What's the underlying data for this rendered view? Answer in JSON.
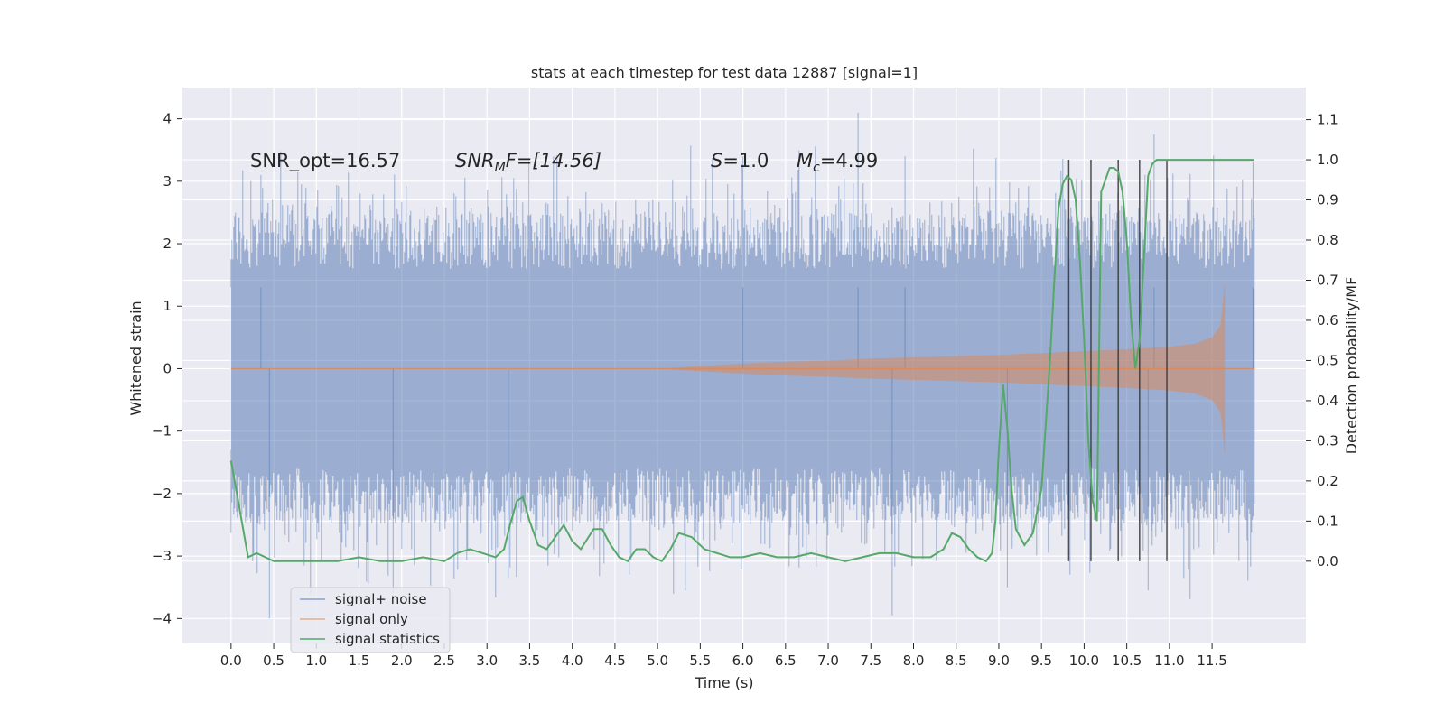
{
  "chart_data": {
    "type": "line",
    "title": "stats at each timestep for test data 12887 [signal=1]",
    "xlabel": "Time (s)",
    "ylabel": "Whitened strain",
    "y2label": "Detection probability/MF",
    "xlim": [
      -0.57,
      12.6
    ],
    "ylim": [
      -4.4,
      4.5
    ],
    "y2lim": [
      -0.205,
      1.18
    ],
    "xticks": [
      0.0,
      0.5,
      1.0,
      1.5,
      2.0,
      2.5,
      3.0,
      3.5,
      4.0,
      4.5,
      5.0,
      5.5,
      6.0,
      6.5,
      7.0,
      7.5,
      8.0,
      8.5,
      9.0,
      9.5,
      10.0,
      10.5,
      11.0,
      11.5
    ],
    "xtick_labels": [
      "0.0",
      "0.5",
      "1.0",
      "1.5",
      "2.0",
      "2.5",
      "3.0",
      "3.5",
      "4.0",
      "4.5",
      "5.0",
      "5.5",
      "6.0",
      "6.5",
      "7.0",
      "7.5",
      "8.0",
      "8.5",
      "9.0",
      "9.5",
      "10.0",
      "10.5",
      "11.0",
      "11.5"
    ],
    "yticks": [
      -4,
      -3,
      -2,
      -1,
      0,
      1,
      2,
      3,
      4
    ],
    "ytick_labels": [
      "−4",
      "−3",
      "−2",
      "−1",
      "0",
      "1",
      "2",
      "3",
      "4"
    ],
    "y2ticks": [
      0.0,
      0.1,
      0.2,
      0.3,
      0.4,
      0.5,
      0.6,
      0.7,
      0.8,
      0.9,
      1.0,
      1.1
    ],
    "y2tick_labels": [
      "0.0",
      "0.1",
      "0.2",
      "0.3",
      "0.4",
      "0.5",
      "0.6",
      "0.7",
      "0.8",
      "0.9",
      "1.0",
      "1.1"
    ],
    "grid": true,
    "legend_position": "lower-left",
    "annotations": {
      "snr_opt": "SNR_opt=16.57",
      "snr_mf_name": "SNR",
      "snr_mf_sub": "M",
      "snr_mf_rest": "F=[14.56]",
      "s_name": "S",
      "s_value": "=1.0",
      "mc_name": "M",
      "mc_sub": "c",
      "mc_value": "=4.99"
    },
    "series": [
      {
        "name": "signal+ noise",
        "color": "#4c72b0",
        "style": "noise band, approx. time range 0.0 to 12.0",
        "x_range": [
          0.0,
          12.0
        ],
        "upper_envelope_range": [
          1.3,
          4.1
        ],
        "lower_envelope_range": [
          -4.0,
          -1.3
        ]
      },
      {
        "name": "signal only",
        "color": "#dd8452",
        "x": [
          0.0,
          5.0,
          5.5,
          6.0,
          6.5,
          7.0,
          7.5,
          8.0,
          8.5,
          9.0,
          9.5,
          10.0,
          10.5,
          11.0,
          11.3,
          11.5,
          11.6,
          11.65
        ],
        "amplitude": [
          0.0,
          0.0,
          0.04,
          0.08,
          0.11,
          0.13,
          0.16,
          0.18,
          0.2,
          0.22,
          0.25,
          0.28,
          0.31,
          0.35,
          0.4,
          0.5,
          0.7,
          1.4
        ]
      },
      {
        "name": "signal statistics",
        "color": "#55a868",
        "x": [
          0.0,
          0.1,
          0.15,
          0.2,
          0.3,
          0.5,
          0.75,
          1.0,
          1.25,
          1.5,
          1.75,
          2.0,
          2.25,
          2.5,
          2.65,
          2.8,
          2.95,
          3.1,
          3.2,
          3.27,
          3.35,
          3.42,
          3.5,
          3.6,
          3.7,
          3.8,
          3.9,
          4.0,
          4.1,
          4.25,
          4.35,
          4.45,
          4.55,
          4.65,
          4.75,
          4.85,
          4.95,
          5.05,
          5.15,
          5.25,
          5.4,
          5.55,
          5.7,
          5.85,
          6.0,
          6.2,
          6.4,
          6.6,
          6.8,
          7.0,
          7.2,
          7.4,
          7.6,
          7.8,
          8.0,
          8.2,
          8.35,
          8.45,
          8.55,
          8.65,
          8.75,
          8.85,
          8.92,
          8.96,
          9.0,
          9.05,
          9.1,
          9.15,
          9.2,
          9.3,
          9.4,
          9.5,
          9.6,
          9.65,
          9.7,
          9.75,
          9.8,
          9.85,
          9.9,
          9.95,
          10.0,
          10.05,
          10.1,
          10.15,
          10.2,
          10.3,
          10.35,
          10.4,
          10.45,
          10.5,
          10.55,
          10.6,
          10.65,
          10.7,
          10.75,
          10.8,
          10.85,
          10.9,
          10.95,
          11.0,
          11.05,
          11.1,
          11.2,
          11.5,
          11.99
        ],
        "y": [
          0.25,
          0.13,
          0.07,
          0.01,
          0.02,
          0.0,
          0.0,
          0.0,
          0.0,
          0.01,
          0.0,
          0.0,
          0.01,
          0.0,
          0.02,
          0.03,
          0.02,
          0.01,
          0.03,
          0.09,
          0.15,
          0.16,
          0.1,
          0.04,
          0.03,
          0.06,
          0.09,
          0.05,
          0.03,
          0.08,
          0.08,
          0.04,
          0.01,
          0.0,
          0.03,
          0.03,
          0.01,
          0.0,
          0.03,
          0.07,
          0.06,
          0.03,
          0.02,
          0.01,
          0.01,
          0.02,
          0.01,
          0.01,
          0.02,
          0.01,
          0.0,
          0.01,
          0.02,
          0.02,
          0.01,
          0.01,
          0.03,
          0.07,
          0.06,
          0.03,
          0.01,
          0.0,
          0.02,
          0.1,
          0.28,
          0.44,
          0.33,
          0.18,
          0.08,
          0.04,
          0.07,
          0.18,
          0.5,
          0.7,
          0.88,
          0.94,
          0.96,
          0.95,
          0.9,
          0.75,
          0.55,
          0.3,
          0.15,
          0.1,
          0.92,
          0.98,
          0.98,
          0.97,
          0.92,
          0.8,
          0.6,
          0.48,
          0.55,
          0.75,
          0.96,
          0.99,
          1.0,
          1.0,
          1.0,
          1.0,
          1.0,
          1.0,
          1.0,
          1.0,
          1.0
        ]
      }
    ],
    "vertical_lines": [
      9.82,
      10.08,
      10.4,
      10.65,
      10.97
    ],
    "vertical_line_color": "#333333"
  }
}
